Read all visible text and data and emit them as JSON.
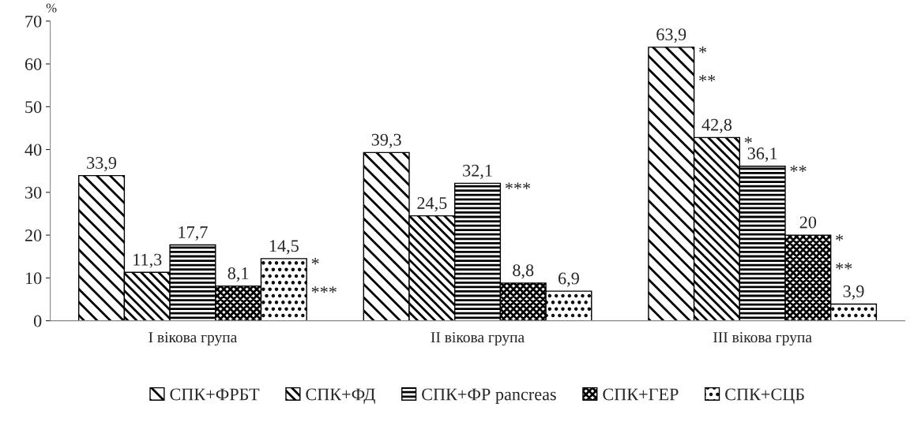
{
  "chart_data": {
    "type": "bar",
    "ylabel": "%",
    "categories": [
      "I вікова група",
      "II вікова група",
      "III вікова група"
    ],
    "series": [
      {
        "name": "СПК+ФРБТ",
        "color": "#000000",
        "values": [
          33.9,
          39.3,
          63.9
        ],
        "value_labels": [
          "33,9",
          "39,3",
          "63,9"
        ]
      },
      {
        "name": "СПК+ФД",
        "color": "#000000",
        "values": [
          11.3,
          24.5,
          42.8
        ],
        "value_labels": [
          "11,3",
          "24,5",
          "42,8"
        ]
      },
      {
        "name": "СПК+ФР pancreas",
        "color": "#000000",
        "values": [
          17.7,
          32.1,
          36.1
        ],
        "value_labels": [
          "17,7",
          "32,1",
          "36,1"
        ]
      },
      {
        "name": "СПК+ГЕР",
        "color": "#000000",
        "values": [
          8.1,
          8.8,
          20
        ],
        "value_labels": [
          "8,1",
          "8,8",
          "20"
        ]
      },
      {
        "name": "СПК+СЦБ",
        "color": "#000000",
        "values": [
          14.5,
          6.9,
          3.9
        ],
        "value_labels": [
          "14,5",
          "6,9",
          "3,9"
        ]
      }
    ],
    "annotations": [
      "*",
      "***",
      "***",
      "*",
      "**",
      "*",
      "**",
      "*",
      "**"
    ],
    "ylim": [
      0,
      70
    ],
    "yticks": [
      0,
      10,
      20,
      30,
      40,
      50,
      60,
      70
    ],
    "grid": false,
    "legend": "bottom"
  }
}
